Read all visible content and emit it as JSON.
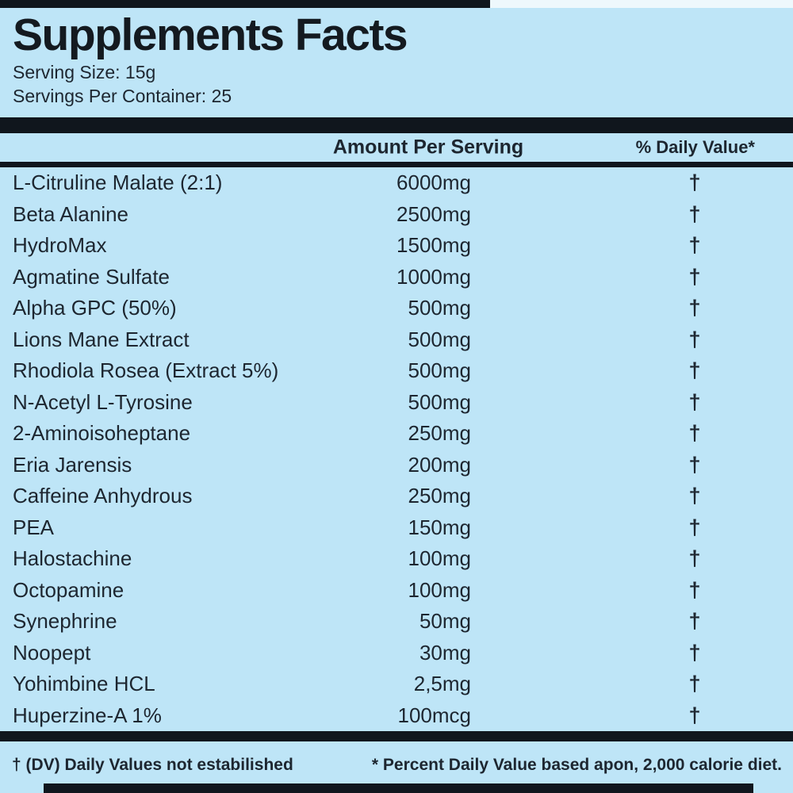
{
  "label": {
    "title": "Supplements Facts",
    "serving_size": "Serving Size: 15g",
    "servings_per_container": "Servings Per Container: 25",
    "columns": {
      "amount": "Amount Per Serving",
      "daily_value": "% Daily Value*"
    },
    "rows": [
      {
        "name": "L-Citruline Malate (2:1)",
        "amount": "6000mg",
        "dv": "†"
      },
      {
        "name": "Beta Alanine",
        "amount": "2500mg",
        "dv": "†"
      },
      {
        "name": "HydroMax",
        "amount": "1500mg",
        "dv": "†"
      },
      {
        "name": "Agmatine Sulfate",
        "amount": "1000mg",
        "dv": "†"
      },
      {
        "name": "Alpha GPC (50%)",
        "amount": "500mg",
        "dv": "†"
      },
      {
        "name": "Lions Mane Extract",
        "amount": "500mg",
        "dv": "†"
      },
      {
        "name": "Rhodiola Rosea (Extract 5%)",
        "amount": "500mg",
        "dv": "†"
      },
      {
        "name": "N-Acetyl L-Tyrosine",
        "amount": "500mg",
        "dv": "†"
      },
      {
        "name": "2-Aminoisoheptane",
        "amount": "250mg",
        "dv": "†"
      },
      {
        "name": "Eria Jarensis",
        "amount": "200mg",
        "dv": "†"
      },
      {
        "name": "Caffeine Anhydrous",
        "amount": "250mg",
        "dv": "†"
      },
      {
        "name": "PEA",
        "amount": "150mg",
        "dv": "†"
      },
      {
        "name": "Halostachine",
        "amount": "100mg",
        "dv": "†"
      },
      {
        "name": "Octopamine",
        "amount": "100mg",
        "dv": "†"
      },
      {
        "name": "Synephrine",
        "amount": "50mg",
        "dv": "†"
      },
      {
        "name": "Noopept",
        "amount": "30mg",
        "dv": "†"
      },
      {
        "name": "Yohimbine HCL",
        "amount": "2,5mg",
        "dv": "†"
      },
      {
        "name": "Huperzine-A 1%",
        "amount": "100mcg",
        "dv": "†"
      }
    ],
    "footnotes": {
      "dagger": "† (DV) Daily Values not estabilished",
      "asterisk": "* Percent Daily Value based apon, 2,000 calorie diet."
    },
    "colors": {
      "background": "#bee5f7",
      "bar": "#10161d",
      "text": "#1d2630"
    }
  }
}
